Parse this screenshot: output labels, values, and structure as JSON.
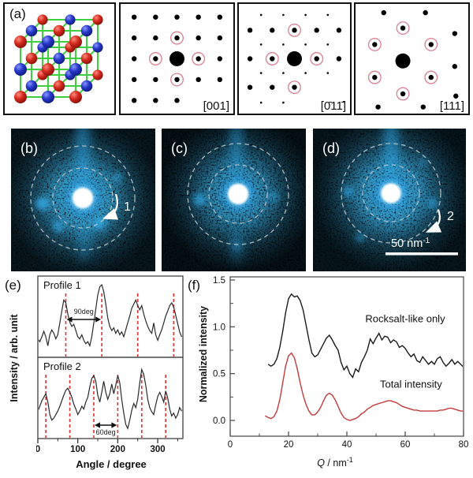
{
  "colors": {
    "ring_pink": "#d9808f",
    "dash_red": "#e03131",
    "profile_line": "#2a2a2a",
    "rocksalt_curve": "#1a1a1a",
    "total_curve": "#c43a3a",
    "speckle_blue": "#35b0ee",
    "atom_red": "#d42a1e",
    "atom_blue": "#2637c8",
    "bond_green": "#3ecf3e",
    "dashed_circle": "#b9c7c9"
  },
  "panels": {
    "a": {
      "label": "(a)"
    },
    "b": {
      "label": "(b)",
      "arrow_label": "1"
    },
    "c": {
      "label": "(c)"
    },
    "d": {
      "label": "(d)",
      "arrow_label": "2",
      "scale_bar_text": "50 nm",
      "scale_bar_sup": "-1"
    },
    "e": {
      "label": "(e)",
      "ylabel": "Intensity / arb. unit",
      "xlabel": "Angle / degree"
    },
    "f": {
      "label": "(f)",
      "ylabel": "Normalized intensity",
      "xlabel_q": "Q",
      "xlabel_mid": " / nm",
      "xlabel_sup": "-1"
    }
  },
  "diffraction_patterns": [
    {
      "zone_axis": "[001]",
      "dots": [
        [
          12,
          12,
          "s",
          false
        ],
        [
          31,
          12,
          "s",
          false
        ],
        [
          50,
          12,
          "s",
          false
        ],
        [
          69,
          12,
          "s",
          false
        ],
        [
          88,
          12,
          "s",
          false
        ],
        [
          12,
          31,
          "s",
          false
        ],
        [
          31,
          31,
          "s",
          false
        ],
        [
          50,
          31,
          "s",
          true
        ],
        [
          69,
          31,
          "s",
          false
        ],
        [
          88,
          31,
          "s",
          false
        ],
        [
          12,
          50,
          "s",
          false
        ],
        [
          31,
          50,
          "s",
          true
        ],
        [
          50,
          50,
          "L",
          false
        ],
        [
          69,
          50,
          "s",
          true
        ],
        [
          88,
          50,
          "s",
          false
        ],
        [
          12,
          69,
          "s",
          false
        ],
        [
          31,
          69,
          "s",
          false
        ],
        [
          50,
          69,
          "s",
          true
        ],
        [
          69,
          69,
          "s",
          false
        ],
        [
          88,
          69,
          "s",
          false
        ],
        [
          12,
          88,
          "s",
          false
        ],
        [
          31,
          88,
          "s",
          false
        ],
        [
          50,
          88,
          "s",
          false
        ]
      ]
    },
    {
      "zone_axis": "[0̄11̄]",
      "dots": [
        [
          20,
          10,
          "t",
          false
        ],
        [
          40,
          10,
          "t",
          false
        ],
        [
          60,
          10,
          "t",
          false
        ],
        [
          80,
          10,
          "t",
          false
        ],
        [
          10,
          24,
          "s",
          false
        ],
        [
          30,
          24,
          "s",
          false
        ],
        [
          50,
          24,
          "s",
          true
        ],
        [
          70,
          24,
          "s",
          false
        ],
        [
          90,
          24,
          "s",
          false
        ],
        [
          20,
          37,
          "t",
          false
        ],
        [
          40,
          37,
          "t",
          false
        ],
        [
          60,
          37,
          "t",
          false
        ],
        [
          80,
          37,
          "t",
          false
        ],
        [
          10,
          50,
          "s",
          false
        ],
        [
          30,
          50,
          "s",
          true
        ],
        [
          50,
          50,
          "L",
          false
        ],
        [
          70,
          50,
          "s",
          true
        ],
        [
          90,
          50,
          "s",
          false
        ],
        [
          20,
          63,
          "t",
          false
        ],
        [
          40,
          63,
          "t",
          false
        ],
        [
          60,
          63,
          "t",
          false
        ],
        [
          80,
          63,
          "t",
          false
        ],
        [
          10,
          76,
          "s",
          false
        ],
        [
          30,
          76,
          "s",
          false
        ],
        [
          50,
          76,
          "s",
          true
        ],
        [
          20,
          90,
          "t",
          false
        ],
        [
          40,
          90,
          "t",
          false
        ]
      ]
    },
    {
      "zone_axis": "[111]",
      "dots": [
        [
          25,
          8,
          "s",
          false
        ],
        [
          62,
          8,
          "s",
          false
        ],
        [
          42,
          22,
          "s",
          true
        ],
        [
          17,
          37,
          "s",
          true
        ],
        [
          67,
          37,
          "s",
          true
        ],
        [
          88,
          27,
          "s",
          false
        ],
        [
          42,
          52,
          "L",
          false
        ],
        [
          88,
          57,
          "s",
          false
        ],
        [
          17,
          67,
          "s",
          true
        ],
        [
          67,
          67,
          "s",
          true
        ],
        [
          42,
          82,
          "s",
          true
        ],
        [
          89,
          84,
          "s",
          false
        ],
        [
          20,
          94,
          "s",
          false
        ],
        [
          60,
          94,
          "s",
          false
        ]
      ]
    }
  ],
  "chart_data": [
    {
      "id": "angular-profiles",
      "type": "line",
      "xlabel": "Angle / degree",
      "ylabel": "Intensity / arb. unit",
      "xlim": [
        0,
        363
      ],
      "xticks": [
        "0",
        "100",
        "200",
        "300"
      ],
      "xtick_vals": [
        0,
        100,
        200,
        300
      ],
      "xminor_vals": [
        50,
        150,
        250,
        350
      ],
      "grid": false,
      "panels": [
        {
          "title": "Profile 1",
          "x_start": 0,
          "x_step": 5,
          "y": [
            0.22,
            0.18,
            0.25,
            0.33,
            0.25,
            0.12,
            0.28,
            0.35,
            0.3,
            0.22,
            0.28,
            0.45,
            0.62,
            0.78,
            0.74,
            0.58,
            0.46,
            0.4,
            0.43,
            0.34,
            0.25,
            0.22,
            0.28,
            0.2,
            0.15,
            0.18,
            0.12,
            0.25,
            0.45,
            0.65,
            0.85,
            0.97,
            1.0,
            0.9,
            0.72,
            0.52,
            0.4,
            0.34,
            0.38,
            0.3,
            0.35,
            0.28,
            0.32,
            0.25,
            0.35,
            0.45,
            0.55,
            0.66,
            0.72,
            0.78,
            0.7,
            0.64,
            0.7,
            0.58,
            0.48,
            0.4,
            0.34,
            0.3,
            0.45,
            0.28,
            0.2,
            0.28,
            0.35,
            0.45,
            0.55,
            0.62,
            0.7,
            0.74,
            0.68,
            0.56,
            0.44,
            0.32,
            0.25
          ],
          "dashed_x": [
            70,
            160,
            250,
            340
          ],
          "annotation": {
            "label": "90deg",
            "from": 70,
            "to": 160
          }
        },
        {
          "title": "Profile 2",
          "x_start": 0,
          "x_step": 5,
          "y": [
            0.35,
            0.42,
            0.5,
            0.55,
            0.6,
            0.48,
            0.3,
            0.22,
            0.25,
            0.3,
            0.35,
            0.42,
            0.5,
            0.58,
            0.65,
            0.68,
            0.62,
            0.55,
            0.45,
            0.38,
            0.3,
            0.35,
            0.42,
            0.38,
            0.48,
            0.55,
            0.7,
            0.82,
            0.86,
            0.78,
            0.58,
            0.48,
            0.62,
            0.78,
            0.62,
            0.52,
            0.6,
            0.74,
            0.6,
            0.72,
            0.86,
            0.76,
            0.52,
            0.32,
            0.16,
            0.1,
            0.22,
            0.36,
            0.46,
            0.4,
            0.52,
            0.76,
            0.95,
            0.88,
            0.72,
            0.52,
            0.4,
            0.34,
            0.3,
            0.44,
            0.56,
            0.62,
            0.56,
            0.48,
            0.64,
            0.54,
            0.38,
            0.28,
            0.32,
            0.25,
            0.3,
            0.4,
            0.35
          ],
          "dashed_x": [
            20,
            80,
            140,
            200,
            260,
            320
          ],
          "annotation": {
            "label": "60deg",
            "from": 140,
            "to": 200
          }
        }
      ]
    },
    {
      "id": "q-intensity",
      "type": "line",
      "xlabel": "Q / nm^-1",
      "ylabel": "Normalized intensity",
      "xlim": [
        0,
        80
      ],
      "ylim": [
        0,
        1.5
      ],
      "xticks": [
        "0",
        "20",
        "40",
        "60",
        "80"
      ],
      "xtick_vals": [
        0,
        20,
        40,
        60,
        80
      ],
      "xminor_vals": [
        10,
        30,
        50,
        70
      ],
      "yticks": [
        "0.0",
        "0.5",
        "1.0",
        "1.5"
      ],
      "ytick_vals": [
        0.0,
        0.5,
        1.0,
        1.5
      ],
      "yminor_vals": [
        0.25,
        0.75,
        1.25
      ],
      "grid": false,
      "legend_position": "inline-labels",
      "series": [
        {
          "name": "Rocksalt-like only",
          "color": "#1a1a1a",
          "label_pos": [
            60,
            1.05
          ],
          "x_start": 13,
          "x_step": 1,
          "y": [
            0.6,
            0.58,
            0.6,
            0.66,
            0.78,
            0.95,
            1.15,
            1.3,
            1.35,
            1.32,
            1.33,
            1.28,
            1.18,
            1.02,
            0.86,
            0.72,
            0.68,
            0.7,
            0.76,
            0.82,
            0.88,
            0.91,
            0.86,
            0.8,
            0.75,
            0.62,
            0.54,
            0.58,
            0.5,
            0.46,
            0.55,
            0.52,
            0.62,
            0.68,
            0.75,
            0.87,
            0.82,
            0.88,
            0.93,
            0.86,
            0.9,
            0.89,
            0.83,
            0.86,
            0.84,
            0.78,
            0.8,
            0.77,
            0.72,
            0.68,
            0.71,
            0.64,
            0.62,
            0.68,
            0.64,
            0.6,
            0.63,
            0.6,
            0.66,
            0.68,
            0.62,
            0.58,
            0.61,
            0.65,
            0.6,
            0.63,
            0.6,
            0.57
          ]
        },
        {
          "name": "Total intensity",
          "color": "#c43a3a",
          "label_pos": [
            62,
            0.35
          ],
          "x_start": 12,
          "x_step": 1,
          "y": [
            0.05,
            0.03,
            0.02,
            0.04,
            0.1,
            0.22,
            0.4,
            0.58,
            0.69,
            0.72,
            0.67,
            0.55,
            0.4,
            0.27,
            0.17,
            0.1,
            0.06,
            0.06,
            0.09,
            0.14,
            0.21,
            0.27,
            0.29,
            0.27,
            0.22,
            0.15,
            0.08,
            0.03,
            0.01,
            0.0,
            0.01,
            0.02,
            0.04,
            0.07,
            0.09,
            0.12,
            0.14,
            0.16,
            0.17,
            0.18,
            0.19,
            0.2,
            0.21,
            0.21,
            0.2,
            0.19,
            0.17,
            0.15,
            0.14,
            0.13,
            0.12,
            0.11,
            0.11,
            0.1,
            0.1,
            0.1,
            0.1,
            0.1,
            0.1,
            0.1,
            0.11,
            0.11,
            0.12,
            0.13,
            0.13,
            0.12,
            0.11,
            0.1,
            0.1
          ]
        }
      ]
    }
  ]
}
